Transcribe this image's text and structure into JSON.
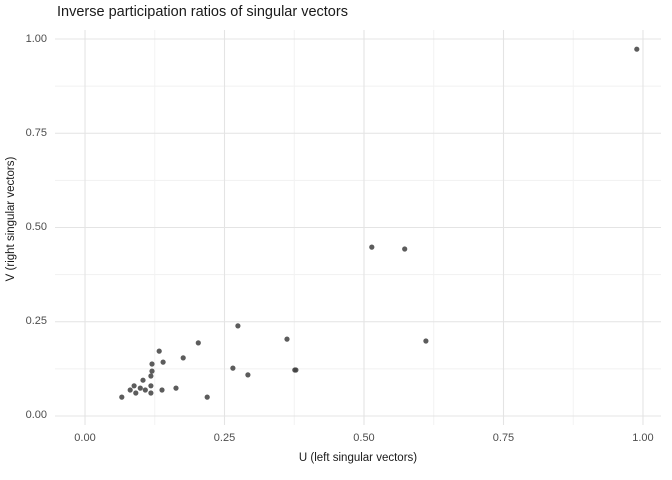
{
  "title": "Inverse participation ratios of singular vectors",
  "colors": {
    "background": "#ffffff",
    "point": "#3f3f3f",
    "grid_major": "#e4e4e4",
    "grid_minor": "#f1f1f1",
    "tick_label": "#4d4d4d",
    "text": "#1a1a1a"
  },
  "chart_data": {
    "type": "scatter",
    "title": "Inverse participation ratios of singular vectors",
    "xlabel": "U (left singular vectors)",
    "ylabel": "V (right singular vectors)",
    "xlim": [
      -0.0538,
      1.0323
    ],
    "ylim": [
      -0.0239,
      1.0239
    ],
    "x_ticks": [
      0.0,
      0.25,
      0.5,
      0.75,
      1.0
    ],
    "y_ticks": [
      0.0,
      0.25,
      0.5,
      0.75,
      1.0
    ],
    "x_tick_labels": [
      "0.00",
      "0.25",
      "0.50",
      "0.75",
      "1.00"
    ],
    "y_tick_labels": [
      "0.00",
      "0.25",
      "0.50",
      "0.75",
      "1.00"
    ],
    "minor_breaks": [
      0.125,
      0.375,
      0.625,
      0.875
    ],
    "grid": true,
    "legend": "none",
    "point_opacity": 0.85,
    "point_radius": 2.6,
    "points": [
      [
        0.066,
        0.05
      ],
      [
        0.081,
        0.069
      ],
      [
        0.088,
        0.08
      ],
      [
        0.091,
        0.061
      ],
      [
        0.099,
        0.074
      ],
      [
        0.104,
        0.095
      ],
      [
        0.108,
        0.069
      ],
      [
        0.118,
        0.08
      ],
      [
        0.118,
        0.061
      ],
      [
        0.118,
        0.106
      ],
      [
        0.12,
        0.119
      ],
      [
        0.12,
        0.138
      ],
      [
        0.133,
        0.172
      ],
      [
        0.14,
        0.143
      ],
      [
        0.138,
        0.069
      ],
      [
        0.163,
        0.074
      ],
      [
        0.176,
        0.154
      ],
      [
        0.203,
        0.194
      ],
      [
        0.219,
        0.05
      ],
      [
        0.265,
        0.127
      ],
      [
        0.274,
        0.239
      ],
      [
        0.292,
        0.109
      ],
      [
        0.362,
        0.204
      ],
      [
        0.376,
        0.122
      ],
      [
        0.378,
        0.122
      ],
      [
        0.514,
        0.448
      ],
      [
        0.573,
        0.443
      ],
      [
        0.611,
        0.199
      ],
      [
        0.989,
        0.973
      ]
    ]
  }
}
